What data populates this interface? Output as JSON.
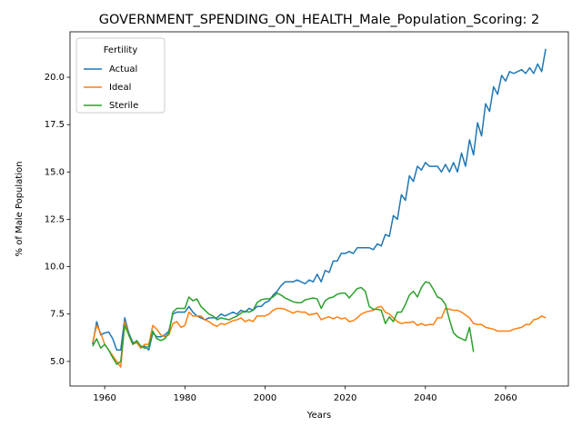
{
  "chart_data": {
    "type": "line",
    "title": "GOVERNMENT_SPENDING_ON_HEALTH_Male_Population_Scoring: 2",
    "xlabel": "Years",
    "ylabel": "% of Male Population",
    "x": [
      1957,
      1958,
      1959,
      1960,
      1961,
      1962,
      1963,
      1964,
      1965,
      1966,
      1967,
      1968,
      1969,
      1970,
      1971,
      1972,
      1973,
      1974,
      1975,
      1976,
      1977,
      1978,
      1979,
      1980,
      1981,
      1982,
      1983,
      1984,
      1985,
      1986,
      1987,
      1988,
      1989,
      1990,
      1991,
      1992,
      1993,
      1994,
      1995,
      1996,
      1997,
      1998,
      1999,
      2000,
      2001,
      2002,
      2003,
      2004,
      2005,
      2006,
      2007,
      2008,
      2009,
      2010,
      2011,
      2012,
      2013,
      2014,
      2015,
      2016,
      2017,
      2018,
      2019,
      2020,
      2021,
      2022,
      2023,
      2024,
      2025,
      2026,
      2027,
      2028,
      2029,
      2030,
      2031,
      2032,
      2033,
      2034,
      2035,
      2036,
      2037,
      2038,
      2039,
      2040,
      2041,
      2042,
      2043,
      2044,
      2045,
      2046,
      2047,
      2048,
      2049,
      2050,
      2051,
      2052,
      2053,
      2054,
      2055,
      2056,
      2057,
      2058,
      2059,
      2060,
      2061,
      2062,
      2063,
      2064,
      2065,
      2066,
      2067,
      2068,
      2069,
      2070
    ],
    "series": [
      {
        "name": "Actual",
        "color": "#1f77b4",
        "values": [
          5.9,
          7.1,
          6.4,
          6.5,
          6.55,
          6.2,
          5.6,
          5.6,
          7.3,
          6.5,
          6.0,
          6.0,
          5.8,
          5.8,
          5.6,
          6.5,
          6.3,
          6.3,
          6.4,
          6.6,
          7.5,
          7.6,
          7.6,
          7.6,
          7.9,
          7.6,
          7.4,
          7.3,
          7.2,
          7.3,
          7.3,
          7.3,
          7.5,
          7.4,
          7.5,
          7.6,
          7.5,
          7.7,
          7.6,
          7.8,
          7.7,
          7.9,
          7.9,
          8.1,
          8.2,
          8.5,
          8.7,
          9.0,
          9.2,
          9.2,
          9.2,
          9.3,
          9.2,
          9.1,
          9.3,
          9.2,
          9.6,
          9.2,
          9.8,
          9.7,
          10.3,
          10.3,
          10.7,
          10.7,
          10.8,
          10.7,
          11.0,
          11.0,
          11.0,
          11.0,
          10.9,
          11.2,
          11.1,
          11.7,
          11.6,
          12.7,
          12.5,
          13.8,
          13.5,
          14.8,
          14.5,
          15.3,
          15.1,
          15.5,
          15.3,
          15.3,
          15.3,
          15.0,
          15.4,
          15.0,
          15.5,
          15.0,
          16.0,
          15.3,
          16.7,
          15.9,
          17.6,
          16.9,
          18.6,
          18.2,
          19.5,
          19.1,
          20.1,
          19.8,
          20.3,
          20.2,
          20.3,
          20.4,
          20.2,
          20.5,
          20.2,
          20.7,
          20.3,
          21.5
        ]
      },
      {
        "name": "Ideal",
        "color": "#ff7f0e",
        "values": [
          6.0,
          6.9,
          6.5,
          5.9,
          5.6,
          5.3,
          5.0,
          4.7,
          7.1,
          6.4,
          5.9,
          6.0,
          5.7,
          5.9,
          5.9,
          6.9,
          6.7,
          6.4,
          6.3,
          6.4,
          7.0,
          7.1,
          6.8,
          6.9,
          7.6,
          7.4,
          7.4,
          7.4,
          7.2,
          7.1,
          6.95,
          6.85,
          7.0,
          6.95,
          7.05,
          7.15,
          7.2,
          7.3,
          7.1,
          7.2,
          7.1,
          7.4,
          7.4,
          7.4,
          7.5,
          7.7,
          7.8,
          7.8,
          7.75,
          7.65,
          7.55,
          7.65,
          7.6,
          7.6,
          7.45,
          7.5,
          7.55,
          7.2,
          7.3,
          7.35,
          7.25,
          7.35,
          7.25,
          7.3,
          7.1,
          7.15,
          7.3,
          7.5,
          7.6,
          7.65,
          7.7,
          7.85,
          7.9,
          7.6,
          7.5,
          7.3,
          7.1,
          7.0,
          7.05,
          7.05,
          7.1,
          6.9,
          7.0,
          6.9,
          6.95,
          6.95,
          7.3,
          7.3,
          7.8,
          7.75,
          7.7,
          7.7,
          7.6,
          7.45,
          7.3,
          7.0,
          6.95,
          6.95,
          6.8,
          6.75,
          6.7,
          6.6,
          6.6,
          6.6,
          6.6,
          6.7,
          6.75,
          6.8,
          6.95,
          6.95,
          7.2,
          7.25,
          7.4,
          7.3
        ]
      },
      {
        "name": "Sterile",
        "color": "#2ca02c",
        "values": [
          5.8,
          6.2,
          5.7,
          5.9,
          5.6,
          5.2,
          4.85,
          5.0,
          6.9,
          6.4,
          5.9,
          6.1,
          5.8,
          5.7,
          5.8,
          6.6,
          6.2,
          6.1,
          6.2,
          6.5,
          7.6,
          7.8,
          7.8,
          7.8,
          8.4,
          8.2,
          8.3,
          7.9,
          7.7,
          7.5,
          7.4,
          7.2,
          7.3,
          7.25,
          7.2,
          7.3,
          7.4,
          7.55,
          7.65,
          7.6,
          7.7,
          8.1,
          8.25,
          8.3,
          8.3,
          8.4,
          8.6,
          8.5,
          8.35,
          8.25,
          8.15,
          8.1,
          8.1,
          8.25,
          8.3,
          8.35,
          8.3,
          7.8,
          8.2,
          8.35,
          8.4,
          8.55,
          8.6,
          8.6,
          8.35,
          8.6,
          8.85,
          8.9,
          8.7,
          7.9,
          7.75,
          7.75,
          7.7,
          7.0,
          7.35,
          7.1,
          7.6,
          7.6,
          8.0,
          8.5,
          8.7,
          8.4,
          8.9,
          9.2,
          9.15,
          8.8,
          8.4,
          8.3,
          8.0,
          7.2,
          6.5,
          6.3,
          6.2,
          6.1,
          6.8,
          5.5,
          null,
          null,
          null,
          null,
          null,
          null,
          null,
          null,
          null,
          null,
          null,
          null,
          null,
          null,
          null,
          null,
          null,
          null
        ]
      }
    ],
    "xlim": [
      1951.35,
      2075.65
    ],
    "xticks": [
      1960,
      1980,
      2000,
      2020,
      2040,
      2060
    ],
    "ylim": [
      3.7,
      22.4
    ],
    "yticks": [
      {
        "value": 5,
        "label": "5.0"
      },
      {
        "value": 7.5,
        "label": "7.5"
      },
      {
        "value": 10,
        "label": "10.0"
      },
      {
        "value": 12.5,
        "label": "12.5"
      },
      {
        "value": 15,
        "label": "15.0"
      },
      {
        "value": 17.5,
        "label": "17.5"
      },
      {
        "value": 20,
        "label": "20.0"
      }
    ],
    "legend": "upper left",
    "legend_title": "Fertility"
  }
}
